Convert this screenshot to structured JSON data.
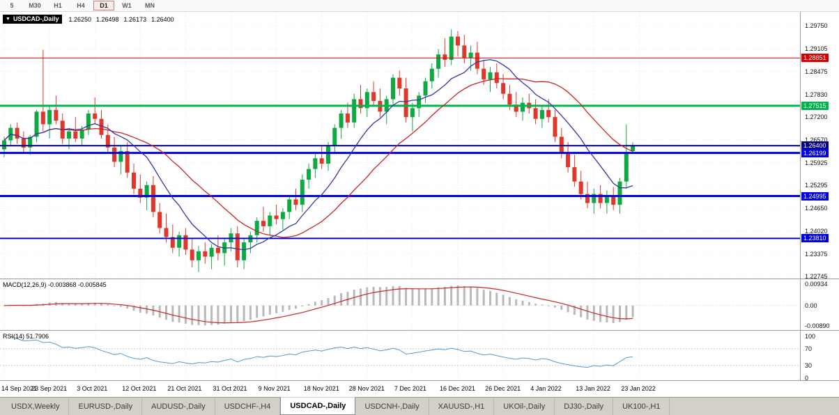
{
  "toolbar": {
    "timeframes": [
      "5",
      "M30",
      "H1",
      "H4",
      "D1",
      "W1",
      "MN"
    ],
    "active_timeframe": "D1"
  },
  "chart_header": {
    "dropdown_icon": "▼",
    "symbol": "USDCAD-,Daily",
    "open": "1.26250",
    "high": "1.26498",
    "low": "1.26173",
    "close": "1.26400"
  },
  "main_axis": {
    "ticks": [
      1.2975,
      1.29105,
      1.28475,
      1.2783,
      1.272,
      1.2657,
      1.25925,
      1.25295,
      1.2465,
      1.2402,
      1.23375,
      1.22745
    ],
    "badges": [
      {
        "value": "1.28851",
        "price": 1.28851,
        "color": "#d40000"
      },
      {
        "value": "1.27515",
        "price": 1.27515,
        "color": "#00b34d"
      },
      {
        "value": "1.26400",
        "price": 1.264,
        "color": "#000080"
      },
      {
        "value": "1.26199",
        "price": 1.26199,
        "color": "#0000dd"
      },
      {
        "value": "1.24995",
        "price": 1.24995,
        "color": "#0000dd"
      },
      {
        "value": "1.23810",
        "price": 1.2381,
        "color": "#0000dd"
      }
    ]
  },
  "hlines": [
    {
      "price": 1.28851,
      "color": "#d40000",
      "width": 1
    },
    {
      "price": 1.27515,
      "color": "#00b34d",
      "width": 3
    },
    {
      "price": 1.264,
      "color": "#000080",
      "width": 2
    },
    {
      "price": 1.26199,
      "color": "#0000dd",
      "width": 3
    },
    {
      "price": 1.24995,
      "color": "#0000dd",
      "width": 3
    },
    {
      "price": 1.2381,
      "color": "#0000dd",
      "width": 2
    }
  ],
  "macd_panel": {
    "label": "MACD(12,26,9) -0.003868 -0.005845",
    "axis_ticks": [
      "0.00934",
      "0.00",
      "-0.00890"
    ],
    "domain": [
      -0.0107,
      0.0115
    ]
  },
  "rsi_panel": {
    "label": "RSI(14) 51.7906",
    "axis_ticks": [
      "100",
      "70",
      "30",
      "0"
    ],
    "domain": [
      -5,
      113
    ],
    "levels": [
      70,
      30
    ]
  },
  "date_axis": {
    "step": 7,
    "labels": [
      "14 Sep 2021",
      "23 Sep 2021",
      "3 Oct 2021",
      "12 Oct 2021",
      "21 Oct 2021",
      "31 Oct 2021",
      "9 Nov 2021",
      "18 Nov 2021",
      "28 Nov 2021",
      "7 Dec 2021",
      "16 Dec 2021",
      "26 Dec 2021",
      "4 Jan 2022",
      "13 Jan 2022",
      "23 Jan 2022"
    ]
  },
  "tabs": [
    {
      "label": "USDX,Weekly",
      "active": false
    },
    {
      "label": "EURUSD-,Daily",
      "active": false
    },
    {
      "label": "AUDUSD-,Daily",
      "active": false
    },
    {
      "label": "USDCHF-,H4",
      "active": false
    },
    {
      "label": "USDCAD-,Daily",
      "active": true
    },
    {
      "label": "USDCNH-,Daily",
      "active": false
    },
    {
      "label": "XAUUSD-,H1",
      "active": false
    },
    {
      "label": "UKOil-,Daily",
      "active": false
    },
    {
      "label": "DJ30-,Daily",
      "active": false
    },
    {
      "label": "UK100-,H1",
      "active": false
    }
  ],
  "chart_data": {
    "type": "candlestick",
    "title": "USDCAD-,Daily",
    "current_ohlc": {
      "open": 1.2625,
      "high": 1.26498,
      "low": 1.26173,
      "close": 1.264
    },
    "price_domain": [
      1.2269,
      1.3014
    ],
    "bull_color": "#0caa41",
    "bear_color": "#e0372b",
    "ma_fast": {
      "period": 10,
      "color": "#3434a8"
    },
    "ma_slow": {
      "period": 21,
      "color": "#cc2222"
    },
    "macd": {
      "fast": 12,
      "slow": 26,
      "signal": 9,
      "hist_color": "#b9b9b9",
      "signal_color": "#cc2222",
      "current_main": -0.003868,
      "current_signal": -0.005845
    },
    "rsi": {
      "period": 14,
      "color": "#4f9bd5",
      "current": 51.7906
    },
    "date_labels": [
      "14 Sep 2021",
      "23 Sep 2021",
      "3 Oct 2021",
      "12 Oct 2021",
      "21 Oct 2021",
      "31 Oct 2021",
      "9 Nov 2021",
      "18 Nov 2021",
      "28 Nov 2021",
      "7 Dec 2021",
      "16 Dec 2021",
      "26 Dec 2021",
      "4 Jan 2022",
      "13 Jan 2022",
      "23 Jan 2022"
    ],
    "candles": [
      [
        1.263,
        1.2665,
        1.2608,
        1.2655
      ],
      [
        1.2655,
        1.27,
        1.264,
        1.269
      ],
      [
        1.269,
        1.2705,
        1.2645,
        1.266
      ],
      [
        1.266,
        1.268,
        1.262,
        1.2635
      ],
      [
        1.2635,
        1.267,
        1.2615,
        1.2665
      ],
      [
        1.2665,
        1.274,
        1.265,
        1.2735
      ],
      [
        1.2735,
        1.2908,
        1.268,
        1.27
      ],
      [
        1.27,
        1.275,
        1.266,
        1.274
      ],
      [
        1.274,
        1.278,
        1.27,
        1.271
      ],
      [
        1.271,
        1.273,
        1.2645,
        1.266
      ],
      [
        1.266,
        1.269,
        1.263,
        1.268
      ],
      [
        1.268,
        1.272,
        1.265,
        1.266
      ],
      [
        1.266,
        1.2695,
        1.264,
        1.2685
      ],
      [
        1.2685,
        1.274,
        1.267,
        1.273
      ],
      [
        1.273,
        1.2775,
        1.27,
        1.2715
      ],
      [
        1.2715,
        1.274,
        1.266,
        1.267
      ],
      [
        1.267,
        1.27,
        1.262,
        1.2635
      ],
      [
        1.2635,
        1.2665,
        1.258,
        1.2595
      ],
      [
        1.2595,
        1.264,
        1.256,
        1.2625
      ],
      [
        1.2625,
        1.265,
        1.255,
        1.2565
      ],
      [
        1.2565,
        1.259,
        1.2505,
        1.252
      ],
      [
        1.252,
        1.256,
        1.248,
        1.2495
      ],
      [
        1.2495,
        1.254,
        1.246,
        1.253
      ],
      [
        1.253,
        1.2555,
        1.244,
        1.2455
      ],
      [
        1.2455,
        1.248,
        1.2395,
        1.241
      ],
      [
        1.241,
        1.245,
        1.237,
        1.2385
      ],
      [
        1.2385,
        1.242,
        1.234,
        1.2355
      ],
      [
        1.2355,
        1.24,
        1.233,
        1.239
      ],
      [
        1.239,
        1.241,
        1.2335,
        1.235
      ],
      [
        1.235,
        1.238,
        1.23,
        1.232
      ],
      [
        1.232,
        1.236,
        1.2287,
        1.2345
      ],
      [
        1.2345,
        1.237,
        1.231,
        1.233
      ],
      [
        1.233,
        1.2365,
        1.2295,
        1.2355
      ],
      [
        1.2355,
        1.239,
        1.232,
        1.234
      ],
      [
        1.234,
        1.238,
        1.2305,
        1.237
      ],
      [
        1.237,
        1.241,
        1.2345,
        1.2395
      ],
      [
        1.2395,
        1.2415,
        1.23,
        1.232
      ],
      [
        1.232,
        1.238,
        1.2295,
        1.237
      ],
      [
        1.237,
        1.24,
        1.234,
        1.239
      ],
      [
        1.239,
        1.244,
        1.237,
        1.243
      ],
      [
        1.243,
        1.247,
        1.24,
        1.2415
      ],
      [
        1.2415,
        1.2455,
        1.239,
        1.2445
      ],
      [
        1.2445,
        1.2475,
        1.242,
        1.2435
      ],
      [
        1.2435,
        1.2465,
        1.2405,
        1.2455
      ],
      [
        1.2455,
        1.25,
        1.2435,
        1.249
      ],
      [
        1.249,
        1.252,
        1.246,
        1.2475
      ],
      [
        1.2475,
        1.256,
        1.2455,
        1.2545
      ],
      [
        1.2545,
        1.259,
        1.252,
        1.2575
      ],
      [
        1.2575,
        1.262,
        1.255,
        1.2605
      ],
      [
        1.2605,
        1.264,
        1.2575,
        1.259
      ],
      [
        1.259,
        1.265,
        1.257,
        1.264
      ],
      [
        1.264,
        1.27,
        1.262,
        1.269
      ],
      [
        1.269,
        1.274,
        1.266,
        1.273
      ],
      [
        1.273,
        1.276,
        1.269,
        1.2705
      ],
      [
        1.2705,
        1.2785,
        1.269,
        1.277
      ],
      [
        1.277,
        1.281,
        1.273,
        1.2745
      ],
      [
        1.2745,
        1.28,
        1.272,
        1.279
      ],
      [
        1.279,
        1.282,
        1.275,
        1.2765
      ],
      [
        1.2765,
        1.28,
        1.272,
        1.2735
      ],
      [
        1.2735,
        1.278,
        1.27,
        1.277
      ],
      [
        1.277,
        1.284,
        1.275,
        1.283
      ],
      [
        1.283,
        1.285,
        1.278,
        1.28
      ],
      [
        1.28,
        1.283,
        1.2705,
        1.272
      ],
      [
        1.272,
        1.276,
        1.268,
        1.2745
      ],
      [
        1.2745,
        1.279,
        1.272,
        1.278
      ],
      [
        1.278,
        1.283,
        1.276,
        1.282
      ],
      [
        1.282,
        1.287,
        1.28,
        1.2855
      ],
      [
        1.2855,
        1.291,
        1.283,
        1.2895
      ],
      [
        1.2895,
        1.294,
        1.286,
        1.288
      ],
      [
        1.288,
        1.2965,
        1.2865,
        1.2945
      ],
      [
        1.2945,
        1.296,
        1.289,
        1.292
      ],
      [
        1.292,
        1.295,
        1.287,
        1.2885
      ],
      [
        1.2885,
        1.292,
        1.285,
        1.29
      ],
      [
        1.29,
        1.293,
        1.284,
        1.2855
      ],
      [
        1.2855,
        1.288,
        1.281,
        1.2825
      ],
      [
        1.2825,
        1.286,
        1.279,
        1.2845
      ],
      [
        1.2845,
        1.287,
        1.28,
        1.2815
      ],
      [
        1.2815,
        1.284,
        1.277,
        1.2785
      ],
      [
        1.2785,
        1.281,
        1.274,
        1.2755
      ],
      [
        1.2755,
        1.279,
        1.272,
        1.2735
      ],
      [
        1.2735,
        1.2775,
        1.271,
        1.276
      ],
      [
        1.276,
        1.2785,
        1.273,
        1.2745
      ],
      [
        1.2745,
        1.277,
        1.27,
        1.2715
      ],
      [
        1.2715,
        1.275,
        1.269,
        1.274
      ],
      [
        1.274,
        1.277,
        1.2705,
        1.272
      ],
      [
        1.272,
        1.274,
        1.265,
        1.2665
      ],
      [
        1.2665,
        1.269,
        1.2605,
        1.262
      ],
      [
        1.262,
        1.265,
        1.2565,
        1.258
      ],
      [
        1.258,
        1.2615,
        1.2525,
        1.254
      ],
      [
        1.254,
        1.257,
        1.249,
        1.2505
      ],
      [
        1.2505,
        1.254,
        1.2465,
        1.248
      ],
      [
        1.248,
        1.252,
        1.245,
        1.2505
      ],
      [
        1.2505,
        1.253,
        1.2465,
        1.248
      ],
      [
        1.248,
        1.2515,
        1.245,
        1.25
      ],
      [
        1.25,
        1.2525,
        1.246,
        1.2475
      ],
      [
        1.2475,
        1.255,
        1.245,
        1.254
      ],
      [
        1.254,
        1.27,
        1.252,
        1.262
      ],
      [
        1.2625,
        1.26498,
        1.26173,
        1.264
      ]
    ]
  }
}
